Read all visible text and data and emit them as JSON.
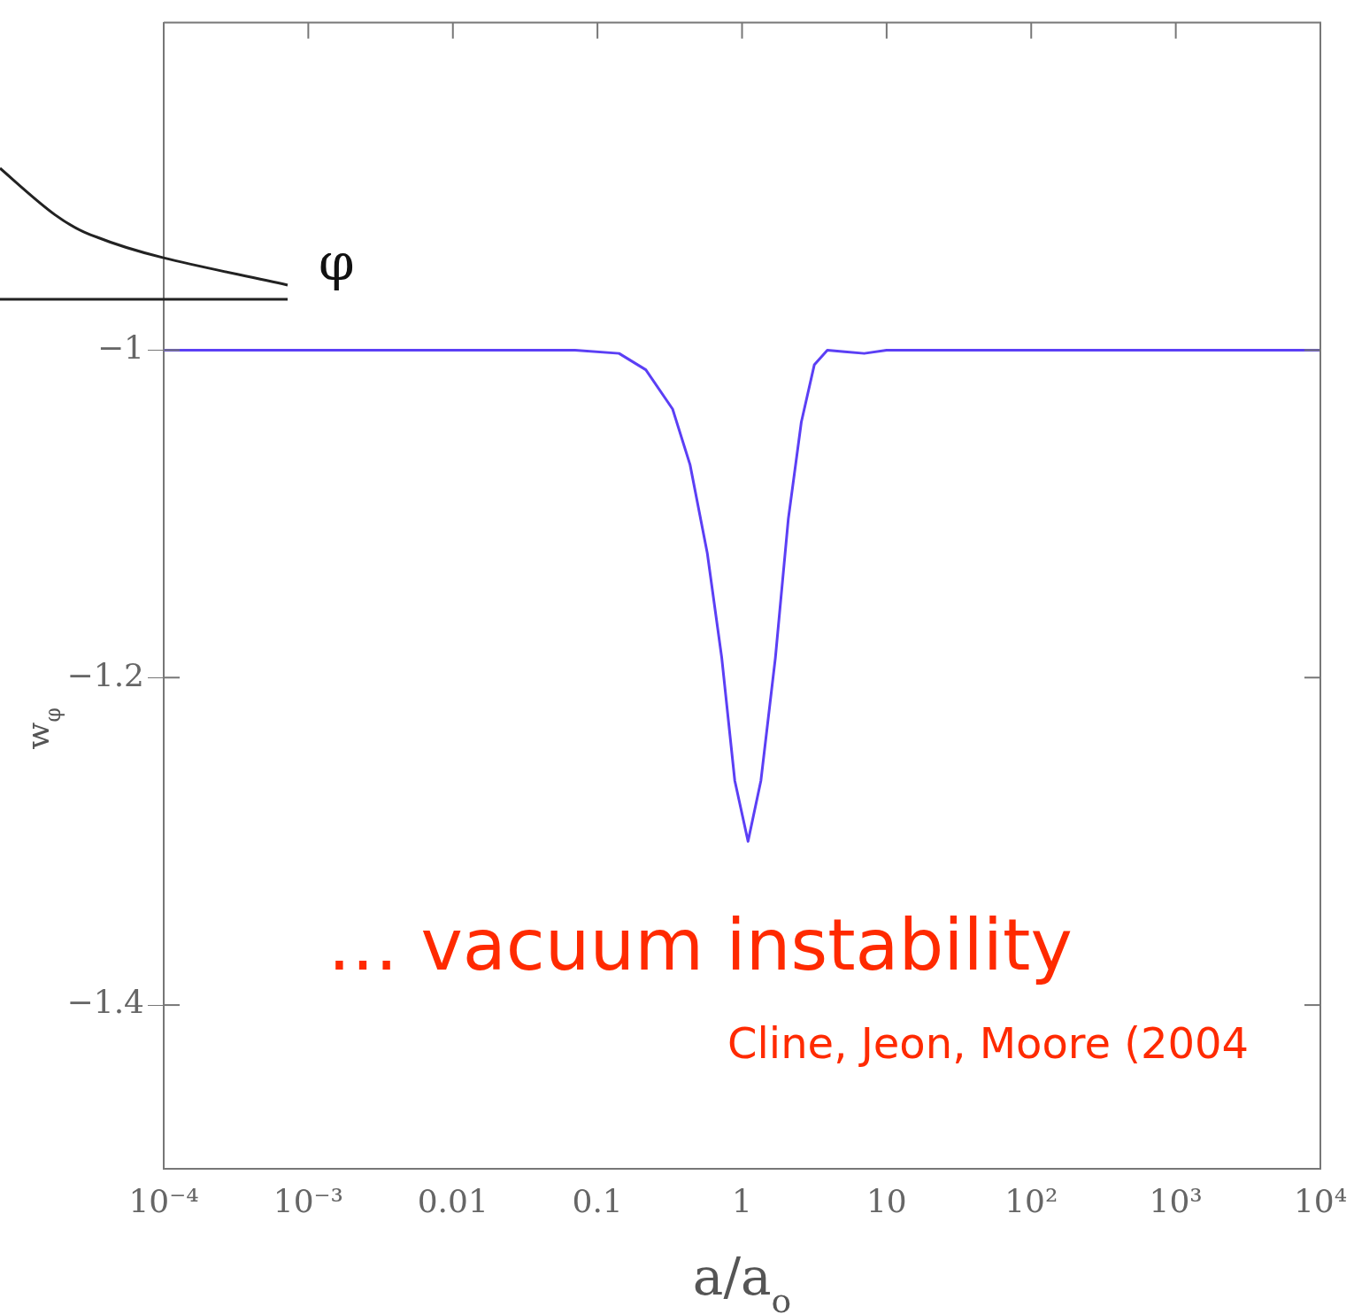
{
  "chart_data": {
    "type": "line",
    "xlabel": "a/a$_{o}$",
    "ylabel": "w$_{φ}$",
    "x": [
      0.0001,
      0.01,
      0.07,
      0.141,
      0.216,
      0.331,
      0.437,
      0.575,
      0.724,
      0.891,
      1.1,
      1.35,
      1.7,
      2.09,
      2.57,
      3.16,
      3.89,
      5.13,
      7,
      10,
      100,
      10000
    ],
    "series": [
      {
        "color": "#5b3ff5",
        "values": [
          -1,
          -1,
          -1,
          -1.002,
          -1.012,
          -1.036,
          -1.07,
          -1.124,
          -1.188,
          -1.263,
          -1.3,
          -1.263,
          -1.188,
          -1.103,
          -1.044,
          -1.009,
          -1,
          -1.001,
          -1.002,
          -1,
          -1,
          -1
        ]
      }
    ],
    "log": "x",
    "xlim": [
      0.0001,
      10000
    ],
    "ylim": [
      -1.5,
      -0.8
    ],
    "xticks": [
      {
        "value": 0.0001,
        "label": "10⁻⁴"
      },
      {
        "value": 0.001,
        "label": "10⁻³"
      },
      0.01,
      0.1,
      1,
      10,
      {
        "value": 100,
        "label": "10²"
      },
      {
        "value": 1000,
        "label": "10³"
      },
      {
        "value": 10000,
        "label": "10⁴"
      }
    ],
    "yticks": [
      {
        "value": -1.4,
        "label": "−1.4"
      },
      {
        "value": -1.2,
        "label": "−1.2"
      },
      {
        "value": -1,
        "label": "−1"
      }
    ],
    "grid": false,
    "legend": false,
    "marker": "none",
    "line_style": "solid",
    "annotations": [
      "φ",
      "… vacuum instability",
      "Cline, Jeon, Moore (2004"
    ]
  }
}
